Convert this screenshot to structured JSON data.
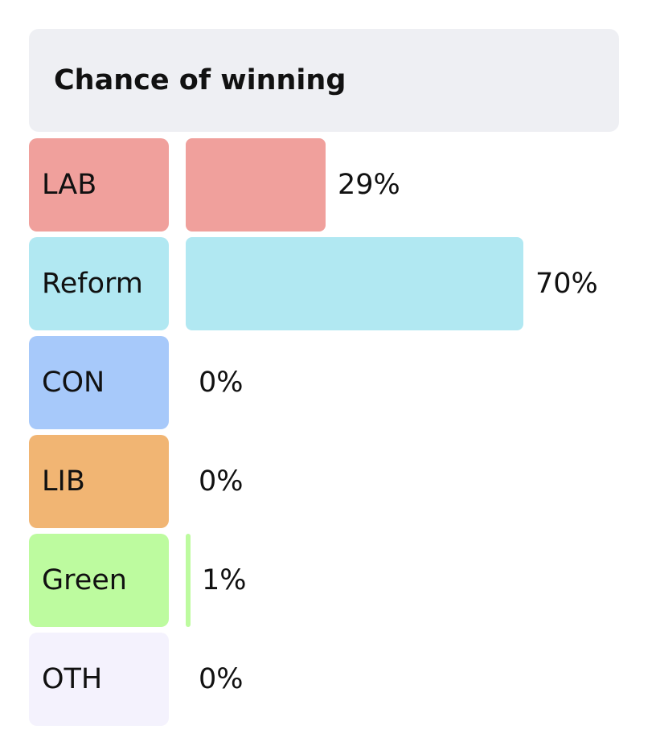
{
  "header": {
    "title": "Chance of winning"
  },
  "chart_data": {
    "type": "bar",
    "orientation": "horizontal",
    "title": "Chance of winning",
    "categories": [
      "LAB",
      "Reform",
      "CON",
      "LIB",
      "Green",
      "OTH"
    ],
    "values": [
      29,
      70,
      0,
      0,
      1,
      0
    ],
    "value_labels": [
      "29%",
      "70%",
      "0%",
      "0%",
      "1%",
      "0%"
    ],
    "xlim": [
      0,
      100
    ],
    "grid": false,
    "legend": "none",
    "colors": [
      "#f0a09c",
      "#b1e8f2",
      "#a7c9fa",
      "#f1b573",
      "#bdfb9f",
      "#f4f2fd"
    ]
  }
}
